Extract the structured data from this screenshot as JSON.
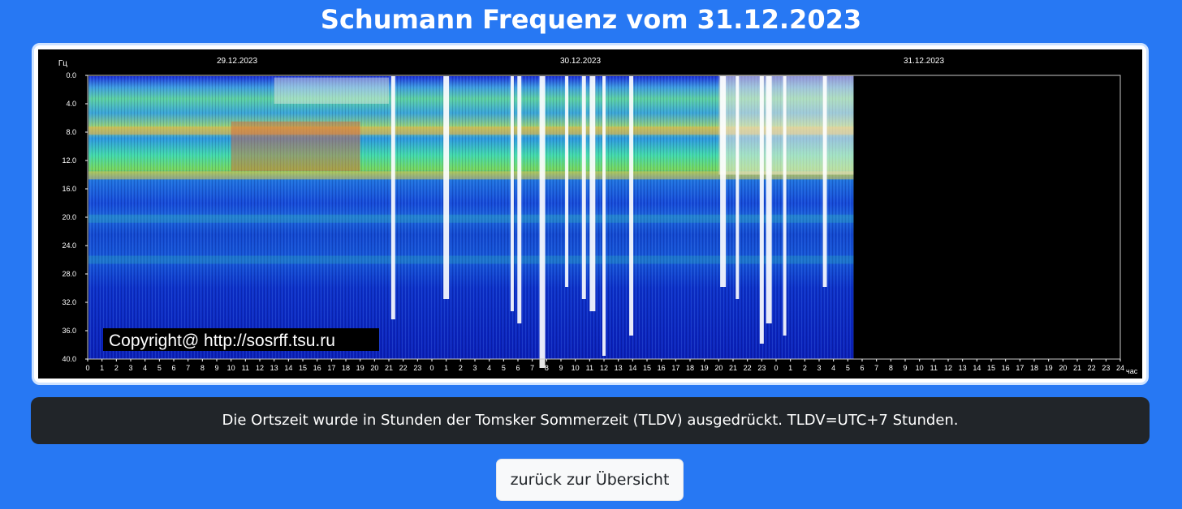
{
  "page": {
    "title": "Schumann Frequenz vom 31.12.2023"
  },
  "chart": {
    "y_unit": "Гц",
    "x_unit": "час",
    "dates": [
      "29.12.2023",
      "30.12.2023",
      "31.12.2023"
    ],
    "y_ticks": [
      "0.0",
      "4.0",
      "8.0",
      "12.0",
      "16.0",
      "20.0",
      "24.0",
      "28.0",
      "32.0",
      "36.0",
      "40.0"
    ],
    "x_ticks": [
      "0",
      "1",
      "2",
      "3",
      "4",
      "5",
      "6",
      "7",
      "8",
      "9",
      "10",
      "11",
      "12",
      "13",
      "14",
      "15",
      "16",
      "17",
      "18",
      "19",
      "20",
      "21",
      "22",
      "23",
      "0",
      "1",
      "2",
      "3",
      "4",
      "5",
      "6",
      "7",
      "8",
      "9",
      "10",
      "11",
      "12",
      "13",
      "14",
      "15",
      "16",
      "17",
      "18",
      "19",
      "20",
      "21",
      "22",
      "23",
      "0",
      "1",
      "2",
      "3",
      "4",
      "5",
      "6",
      "7",
      "8",
      "9",
      "10",
      "11",
      "12",
      "13",
      "14",
      "15",
      "16",
      "17",
      "18",
      "19",
      "20",
      "21",
      "22",
      "23",
      "24"
    ],
    "copyright": "Copyright@ http://sosrff.tsu.ru",
    "ylim": [
      0,
      40
    ],
    "xlim_hours": [
      0,
      72
    ],
    "data_until_hours": 53.4,
    "resonance_bands_hz": [
      7.8,
      14.1,
      20.2,
      26.0
    ],
    "white_bursts_hours": [
      21.3,
      25.0,
      29.6,
      30.1,
      31.7,
      33.4,
      34.6,
      35.2,
      36.0,
      37.9,
      44.3,
      45.3,
      47.0,
      47.5,
      48.6,
      51.4
    ]
  },
  "info": {
    "text": "Die Ortszeit wurde in Stunden der Tomsker Sommerzeit (TLDV) ausgedrückt. TLDV=UTC+7 Stunden."
  },
  "nav": {
    "back_label": "zurück zur Übersicht"
  },
  "colors": {
    "background": "#2778f3",
    "info_bg": "#212529"
  }
}
